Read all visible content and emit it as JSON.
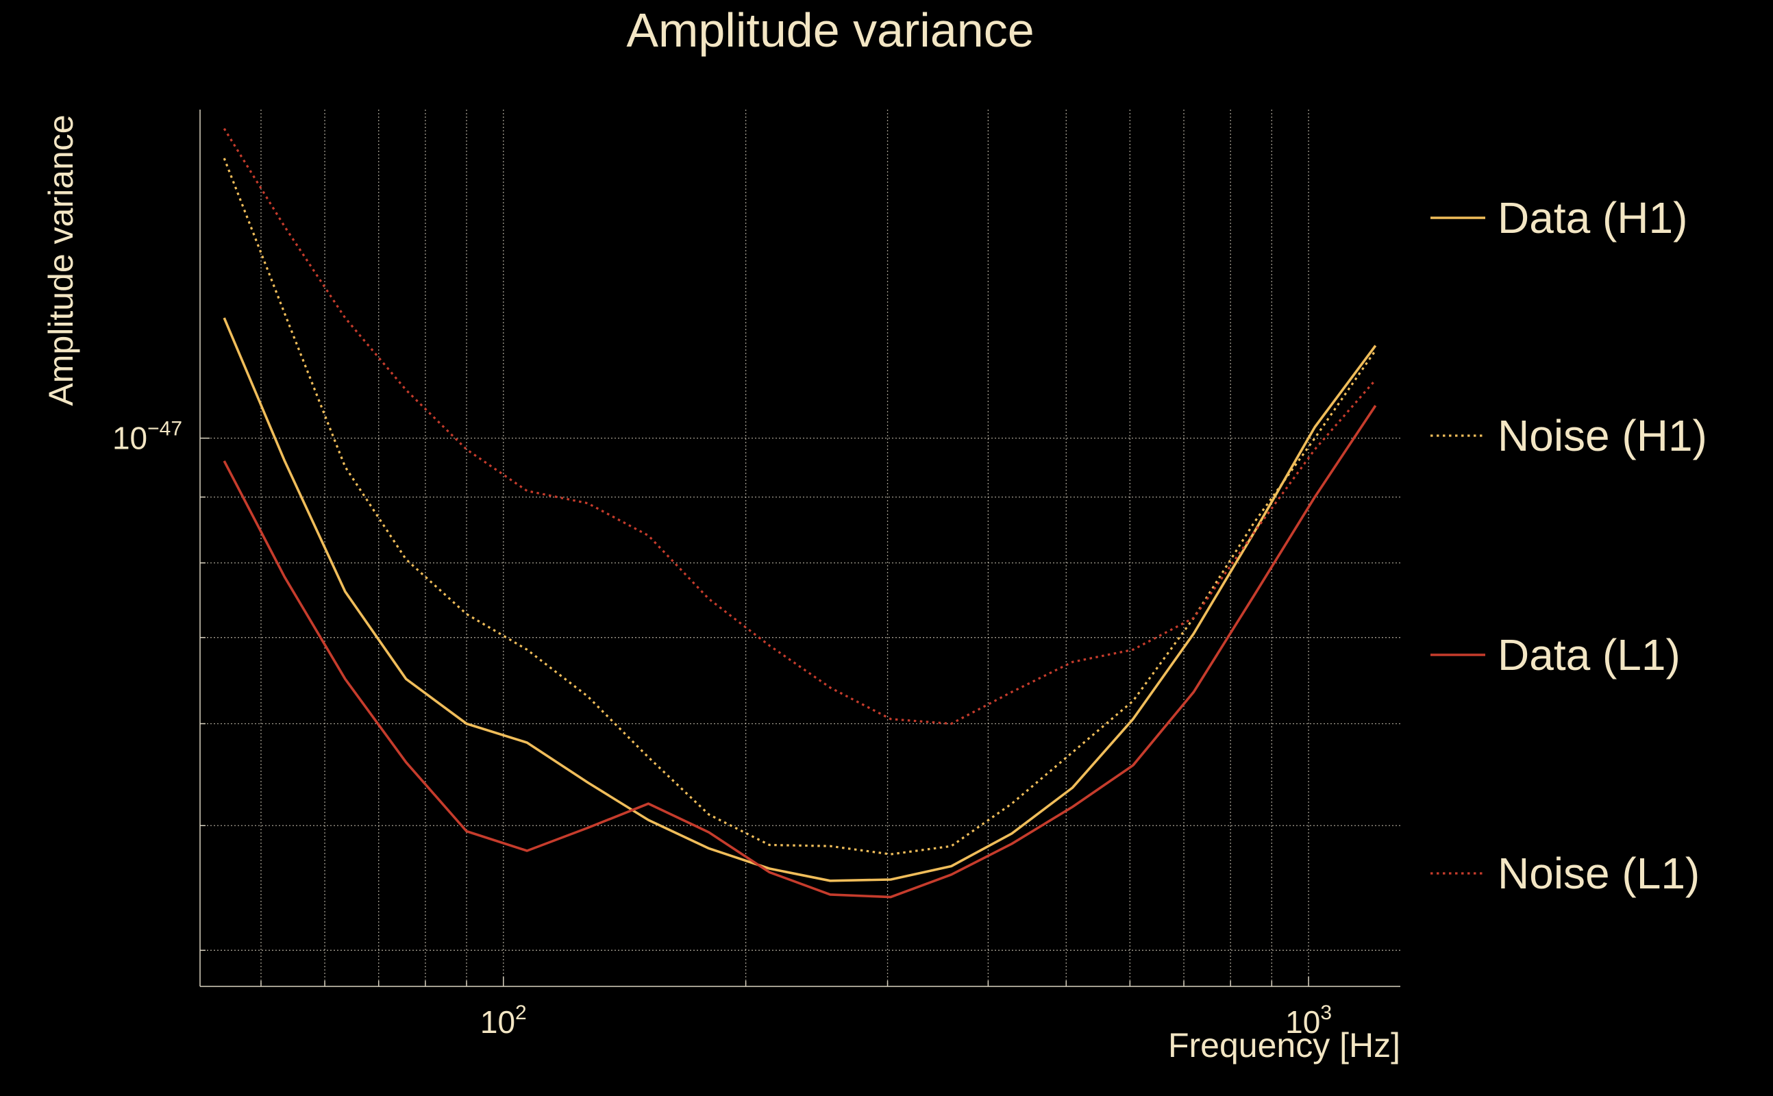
{
  "chart_data": {
    "type": "line",
    "title": "Amplitude variance",
    "xlabel": "Frequency [Hz]",
    "ylabel": "Amplitude variance",
    "xscale": "log",
    "yscale": "log",
    "xlim": [
      42,
      1300
    ],
    "ylim": [
      3.75e-48,
      1.8e-47
    ],
    "xticks": [
      {
        "value": 100,
        "base": "10",
        "exp": "2"
      },
      {
        "value": 1000,
        "base": "10",
        "exp": "3"
      }
    ],
    "yticks": [
      {
        "value": 1e-47,
        "base": "10",
        "exp": "−47"
      }
    ],
    "grid": true,
    "legend_position": "right",
    "x": [
      45,
      53.5,
      63.6,
      75.7,
      90,
      107,
      127.3,
      151.4,
      180,
      214,
      254.6,
      302.7,
      360,
      428,
      509,
      605.4,
      720,
      856,
      1018,
      1211
    ],
    "series": [
      {
        "name": "Data (H1)",
        "style": "solid",
        "color": "#f0bd5a",
        "values": [
          1.24e-47,
          9.6e-48,
          7.6e-48,
          6.5e-48,
          6e-48,
          5.8e-48,
          5.4e-48,
          5.05e-48,
          4.8e-48,
          4.63e-48,
          4.53e-48,
          4.54e-48,
          4.65e-48,
          4.93e-48,
          5.35e-48,
          6.05e-48,
          7.05e-48,
          8.45e-48,
          1.02e-47,
          1.18e-47
        ]
      },
      {
        "name": "Noise (H1)",
        "style": "dotted",
        "color": "#f0bd5a",
        "values": [
          1.65e-47,
          1.25e-47,
          9.5e-48,
          8.05e-48,
          7.3e-48,
          6.85e-48,
          6.3e-48,
          5.65e-48,
          5.1e-48,
          4.83e-48,
          4.82e-48,
          4.75e-48,
          4.82e-48,
          5.2e-48,
          5.7e-48,
          6.25e-48,
          7.25e-48,
          8.6e-48,
          1e-47,
          1.17e-47
        ]
      },
      {
        "name": "Data (L1)",
        "style": "solid",
        "color": "#c63c2c",
        "values": [
          9.6e-48,
          7.8e-48,
          6.5e-48,
          5.6e-48,
          4.95e-48,
          4.78e-48,
          4.98e-48,
          5.2e-48,
          4.94e-48,
          4.6e-48,
          4.42e-48,
          4.4e-48,
          4.58e-48,
          4.84e-48,
          5.17e-48,
          5.57e-48,
          6.35e-48,
          7.55e-48,
          9e-48,
          1.06e-47
        ]
      },
      {
        "name": "Noise (L1)",
        "style": "dotted",
        "color": "#c63c2c",
        "values": [
          1.74e-47,
          1.46e-47,
          1.24e-47,
          1.09e-47,
          9.8e-48,
          9.1e-48,
          8.9e-48,
          8.4e-48,
          7.5e-48,
          6.9e-48,
          6.4e-48,
          6.05e-48,
          6e-48,
          6.35e-48,
          6.7e-48,
          6.85e-48,
          7.25e-48,
          8.45e-48,
          9.8e-48,
          1.11e-47
        ]
      }
    ]
  }
}
